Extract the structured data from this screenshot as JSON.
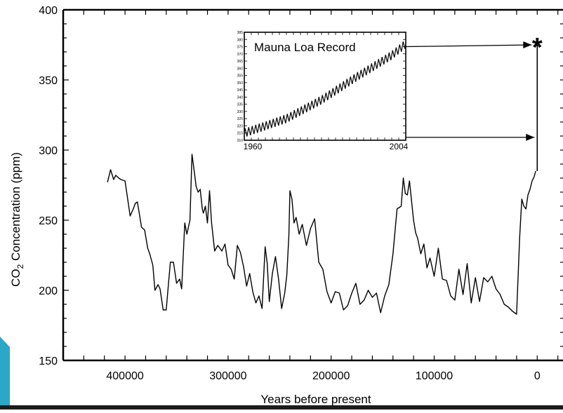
{
  "colors": {
    "background": "#ffffff",
    "line": "#000000",
    "frame": "#000000",
    "bottom_bar": "#1c1c1c",
    "corner_accent": "#2aa7c9"
  },
  "chart_data": [
    {
      "type": "line",
      "title": "",
      "xlabel": "Years before present",
      "ylabel": "CO",
      "ylabel_subscript": "2",
      "ylabel_rest": " Concentration (ppm)",
      "x_reversed": true,
      "xlim": [
        460000,
        -25000
      ],
      "ylim": [
        150,
        400
      ],
      "xticks": [
        400000,
        300000,
        200000,
        100000,
        0
      ],
      "xtick_labels": [
        "400000",
        "300000",
        "200000",
        "100000",
        "0"
      ],
      "yticks": [
        150,
        200,
        250,
        300,
        350,
        400
      ],
      "ytick_labels": [
        "150",
        "200",
        "250",
        "300",
        "350",
        "400"
      ],
      "grid": false,
      "series": [
        {
          "x": [
            417000,
            414000,
            411000,
            409000,
            406000,
            404000,
            400000,
            395000,
            392000,
            390000,
            388000,
            384000,
            381000,
            378000,
            376000,
            373000,
            371000,
            368000,
            366000,
            363000,
            360000,
            358000,
            356000,
            353000,
            350000,
            347000,
            345000,
            342000,
            340000,
            337000,
            335000,
            333000,
            331000,
            329000,
            327000,
            325000,
            324000,
            322000,
            320000,
            318000,
            316000,
            313000,
            310000,
            306000,
            303000,
            300000,
            297000,
            294000,
            291000,
            288000,
            285000,
            282000,
            279000,
            276000,
            273000,
            270000,
            267000,
            264000,
            262000,
            260000,
            257000,
            254000,
            251000,
            248000,
            245000,
            243000,
            241000,
            240000,
            238000,
            236000,
            234000,
            231000,
            228000,
            224000,
            220000,
            216000,
            212000,
            208000,
            204000,
            200000,
            196000,
            192000,
            188000,
            184000,
            180000,
            176000,
            172000,
            168000,
            164000,
            160000,
            156000,
            152000,
            148000,
            144000,
            140000,
            136000,
            132000,
            130000,
            128000,
            126000,
            124000,
            122000,
            120000,
            118000,
            116000,
            113000,
            110000,
            107000,
            104000,
            100000,
            96000,
            92000,
            88000,
            84000,
            80000,
            76000,
            72000,
            68000,
            64000,
            60000,
            56000,
            52000,
            48000,
            44000,
            40000,
            36000,
            32000,
            28000,
            24000,
            20000,
            17000,
            15000,
            13000,
            11000,
            9000,
            7000,
            5000,
            3000,
            1500
          ],
          "values": [
            277,
            286,
            279,
            282,
            280,
            279,
            278,
            253,
            258,
            262,
            263,
            245,
            243,
            230,
            226,
            218,
            200,
            204,
            201,
            186,
            186,
            203,
            220,
            220,
            205,
            208,
            201,
            248,
            240,
            250,
            297,
            286,
            274,
            270,
            272,
            258,
            255,
            260,
            248,
            271,
            248,
            228,
            232,
            228,
            233,
            218,
            215,
            208,
            232,
            227,
            217,
            203,
            212,
            199,
            191,
            196,
            187,
            231,
            219,
            192,
            212,
            224,
            208,
            187,
            198,
            211,
            239,
            271,
            265,
            248,
            252,
            240,
            247,
            232,
            244,
            251,
            220,
            215,
            199,
            191,
            199,
            198,
            186,
            189,
            198,
            205,
            190,
            193,
            200,
            195,
            198,
            184,
            196,
            204,
            226,
            258,
            260,
            280,
            269,
            268,
            278,
            264,
            250,
            241,
            237,
            226,
            233,
            216,
            223,
            210,
            230,
            208,
            207,
            196,
            193,
            215,
            197,
            219,
            191,
            209,
            192,
            209,
            206,
            210,
            201,
            197,
            190,
            188,
            185,
            183,
            238,
            265,
            260,
            258,
            268,
            272,
            278,
            281,
            285
          ]
        }
      ],
      "annotations": [
        {
          "text": "*",
          "x": 0,
          "y": 375
        }
      ]
    },
    {
      "type": "line",
      "title": "Mauna Loa Record",
      "xlim": [
        1958,
        2004
      ],
      "ylim": [
        310,
        385
      ],
      "x_tick_labels": [
        "1960",
        "2004"
      ],
      "y_tick_labels": [
        "310",
        "315",
        "320",
        "325",
        "330",
        "335",
        "340",
        "345",
        "350",
        "355",
        "360",
        "365",
        "370",
        "375",
        "380",
        "385"
      ],
      "series": [
        {
          "x_start": 1958,
          "x_end": 2004,
          "baseline_trend": [
            [
              1958,
              315
            ],
            [
              1970,
              325
            ],
            [
              1980,
              338
            ],
            [
              1990,
              354
            ],
            [
              2000,
              369
            ],
            [
              2004,
              377
            ]
          ],
          "seasonal_amplitude": 3
        }
      ],
      "links": [
        {
          "from": "2004",
          "to_value": 375
        },
        {
          "from": "1960",
          "to_value": 312
        }
      ]
    }
  ]
}
